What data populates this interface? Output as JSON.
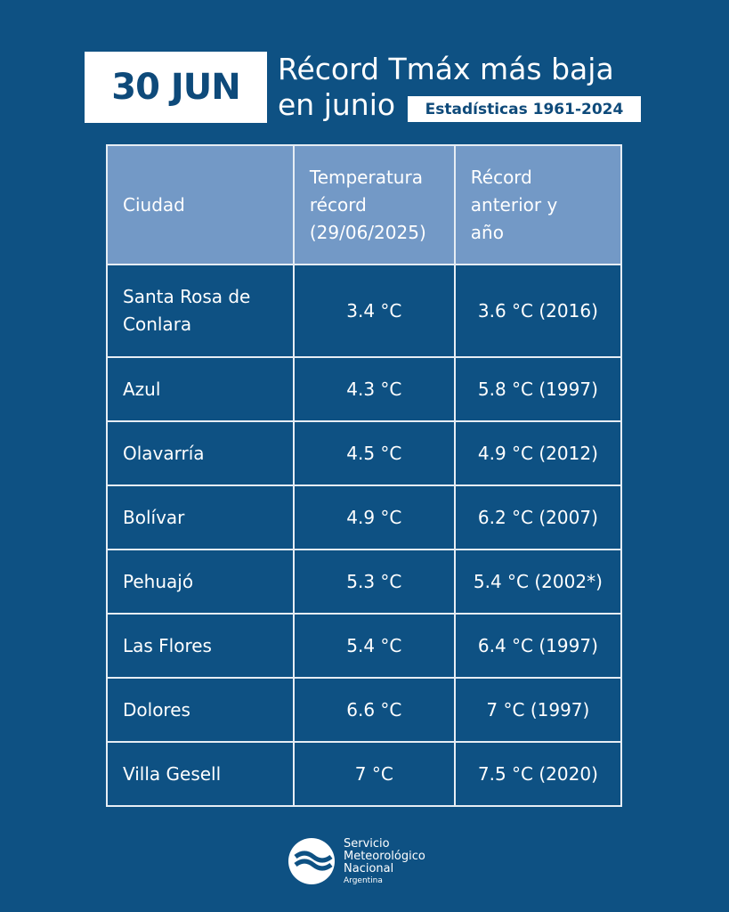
{
  "header": {
    "date": "30 JUN",
    "title": [
      "Récord Tmáx más baja",
      "en junio"
    ],
    "subtitle": "Estadísticas 1961-2024"
  },
  "table": {
    "columns": [
      "Ciudad",
      "Temperatura récord (29/06/2025)",
      "Récord anterior y año"
    ],
    "rows": [
      [
        "Santa Rosa de Conlara",
        "3.4 °C",
        "3.6 °C (2016)"
      ],
      [
        "Azul",
        "4.3 °C",
        "5.8 °C (1997)"
      ],
      [
        "Olavarría",
        "4.5 °C",
        "4.9 °C (2012)"
      ],
      [
        "Bolívar",
        "4.9 °C",
        "6.2 °C (2007)"
      ],
      [
        "Pehuajó",
        "5.3 °C",
        "5.4 °C (2002*)"
      ],
      [
        "Las Flores",
        "5.4 °C",
        "6.4 °C (1997)"
      ],
      [
        "Dolores",
        "6.6 °C",
        "7 °C (1997)"
      ],
      [
        "Villa Gesell",
        "7 °C",
        "7.5 °C (2020)"
      ]
    ]
  },
  "footer": {
    "logo": [
      "Servicio",
      "Meteorológico",
      "Nacional"
    ],
    "country": "Argentina"
  }
}
